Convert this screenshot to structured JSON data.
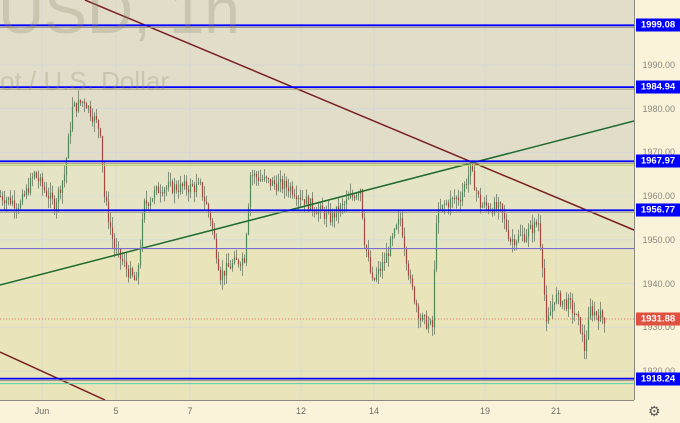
{
  "watermark": {
    "symbol": "USD, 1h",
    "name": "ot / U.S. Dollar"
  },
  "colors": {
    "zone_top": "#e1ddc8",
    "zone_mid": "#e5e5c6",
    "zone_low": "#e9e4ba",
    "level": "#0000ff",
    "trend_down": "#7a1f22",
    "trend_up": "#1f6b2e",
    "current": "#e0513f"
  },
  "price_axis": {
    "ticks": [
      "1990.00",
      "1980.00",
      "1970.00",
      "1960.00",
      "1950.00",
      "1940.00",
      "1930.00",
      "1920.00"
    ],
    "tick_values": [
      1990,
      1980,
      1970,
      1960,
      1950,
      1940,
      1930,
      1920
    ]
  },
  "levels": [
    {
      "label": "1999.08",
      "value": 1999.08
    },
    {
      "label": "1984.94",
      "value": 1984.94
    },
    {
      "label": "1967.97",
      "value": 1967.97
    },
    {
      "label": "1956.77",
      "value": 1956.77
    },
    {
      "label": "1918.24",
      "value": 1918.24
    }
  ],
  "current_price": {
    "label": "1931.88",
    "value": 1931.88
  },
  "time_axis": [
    "Jun",
    "5",
    "7",
    "12",
    "14",
    "19",
    "21"
  ],
  "settings_icon": "gear-icon",
  "price_path": [
    [
      0,
      1960
    ],
    [
      10,
      1958
    ],
    [
      17,
      1965
    ],
    [
      27,
      1958
    ],
    [
      32,
      1965
    ],
    [
      36,
      1980
    ],
    [
      42,
      1982
    ],
    [
      50,
      1975
    ],
    [
      52,
      1960
    ],
    [
      57,
      1948
    ],
    [
      65,
      1942
    ],
    [
      68,
      1940
    ],
    [
      72,
      1958
    ],
    [
      80,
      1962
    ],
    [
      90,
      1962
    ],
    [
      100,
      1962
    ],
    [
      105,
      1955
    ],
    [
      110,
      1942
    ],
    [
      115,
      1944
    ],
    [
      122,
      1946
    ],
    [
      125,
      1965
    ],
    [
      135,
      1963
    ],
    [
      145,
      1962
    ],
    [
      155,
      1958
    ],
    [
      165,
      1955
    ],
    [
      172,
      1958
    ],
    [
      180,
      1962
    ],
    [
      182,
      1950
    ],
    [
      186,
      1940
    ],
    [
      192,
      1945
    ],
    [
      200,
      1955
    ],
    [
      205,
      1940
    ],
    [
      210,
      1932
    ],
    [
      216,
      1930
    ],
    [
      218,
      1955
    ],
    [
      222,
      1958
    ],
    [
      230,
      1960
    ],
    [
      235,
      1966
    ],
    [
      240,
      1958
    ],
    [
      250,
      1957
    ],
    [
      255,
      1950
    ],
    [
      262,
      1951
    ],
    [
      269,
      1954
    ],
    [
      271,
      1945
    ],
    [
      273,
      1930
    ],
    [
      277,
      1937
    ],
    [
      285,
      1935
    ],
    [
      290,
      1930
    ],
    [
      292,
      1925
    ],
    [
      295,
      1934
    ],
    [
      302,
      1932
    ]
  ]
}
